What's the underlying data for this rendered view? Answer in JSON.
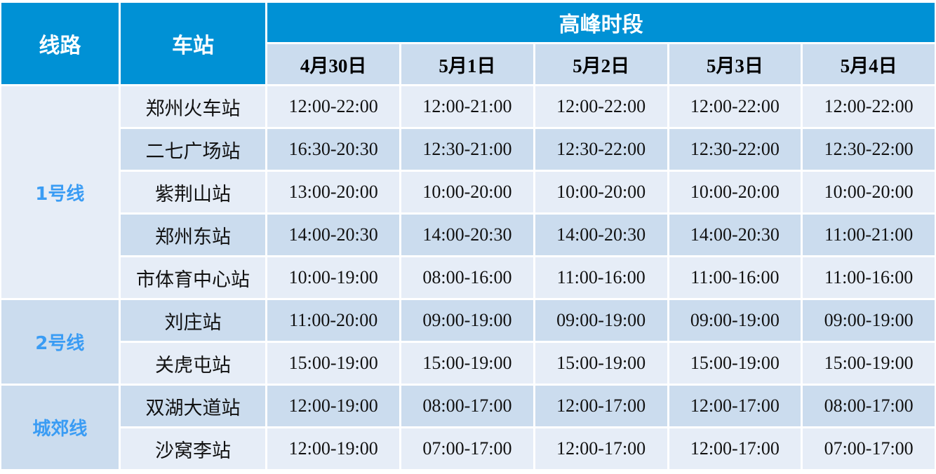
{
  "header": {
    "line": "线路",
    "station": "车站",
    "peak": "高峰时段",
    "dates": [
      "4月30日",
      "5月1日",
      "5月2日",
      "5月3日",
      "5月4日"
    ]
  },
  "colors": {
    "header_bg": "#0091d5",
    "row_dark": "#cbdcee",
    "row_light": "#e6edf7",
    "line_text": "#3a9cf4"
  },
  "lines": [
    {
      "name": "1号线",
      "stations": [
        {
          "name": "郑州火车站",
          "times": [
            "12:00-22:00",
            "12:00-21:00",
            "12:00-22:00",
            "12:00-22:00",
            "12:00-22:00"
          ]
        },
        {
          "name": "二七广场站",
          "times": [
            "16:30-20:30",
            "12:30-21:00",
            "12:30-22:00",
            "12:30-22:00",
            "12:30-22:00"
          ]
        },
        {
          "name": "紫荆山站",
          "times": [
            "13:00-20:00",
            "10:00-20:00",
            "10:00-20:00",
            "10:00-20:00",
            "10:00-20:00"
          ]
        },
        {
          "name": "郑州东站",
          "times": [
            "14:00-20:30",
            "14:00-20:30",
            "14:00-20:30",
            "14:00-20:30",
            "11:00-21:00"
          ]
        },
        {
          "name": "市体育中心站",
          "times": [
            "10:00-19:00",
            "08:00-16:00",
            "11:00-16:00",
            "11:00-16:00",
            "11:00-16:00"
          ]
        }
      ]
    },
    {
      "name": "2号线",
      "stations": [
        {
          "name": "刘庄站",
          "times": [
            "11:00-20:00",
            "09:00-19:00",
            "09:00-19:00",
            "09:00-19:00",
            "09:00-19:00"
          ]
        },
        {
          "name": "关虎屯站",
          "times": [
            "15:00-19:00",
            "15:00-19:00",
            "15:00-19:00",
            "15:00-19:00",
            "15:00-19:00"
          ]
        }
      ]
    },
    {
      "name": "城郊线",
      "stations": [
        {
          "name": "双湖大道站",
          "times": [
            "12:00-19:00",
            "08:00-17:00",
            "12:00-17:00",
            "12:00-17:00",
            "08:00-17:00"
          ]
        },
        {
          "name": "沙窝李站",
          "times": [
            "12:00-19:00",
            "07:00-17:00",
            "12:00-17:00",
            "12:00-17:00",
            "07:00-17:00"
          ]
        }
      ]
    }
  ]
}
